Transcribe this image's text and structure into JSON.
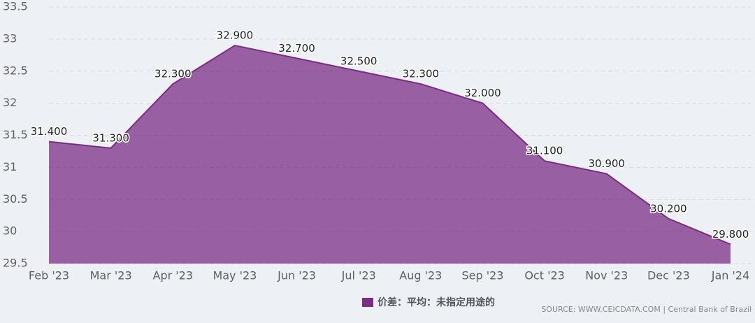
{
  "chart_data": {
    "type": "area",
    "categories": [
      "Feb '23",
      "Mar '23",
      "Apr '23",
      "May '23",
      "Jun '23",
      "Jul '23",
      "Aug '23",
      "Sep '23",
      "Oct '23",
      "Nov '23",
      "Dec '23",
      "Jan '24"
    ],
    "series": [
      {
        "name": "价差：平均：未指定用途的",
        "color": "#7b2d86",
        "values": [
          31.4,
          31.3,
          32.3,
          32.9,
          32.7,
          32.5,
          32.3,
          32.0,
          31.1,
          30.9,
          30.2,
          29.8
        ],
        "value_labels": [
          "31.400",
          "31.300",
          "32.300",
          "32.900",
          "32.700",
          "32.500",
          "32.300",
          "32.000",
          "31.100",
          "30.900",
          "30.200",
          "29.800"
        ]
      }
    ],
    "ylim": [
      29.5,
      33.5
    ],
    "yticks": [
      29.5,
      30,
      30.5,
      31,
      31.5,
      32,
      32.5,
      33,
      33.5
    ],
    "grid": true,
    "source": "SOURCE: WWW.CEICDATA.COM | Central Bank of Brazil"
  }
}
